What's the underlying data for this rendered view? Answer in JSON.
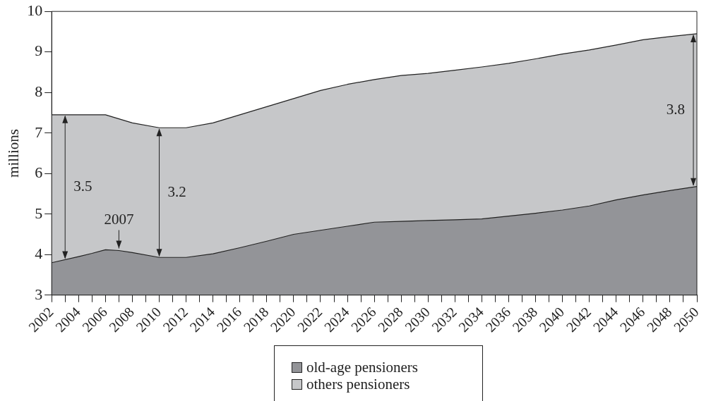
{
  "chart_data": {
    "type": "area",
    "stacked": true,
    "ylabel": "millions",
    "x": [
      2002,
      2004,
      2005,
      2006,
      2007,
      2008,
      2010,
      2012,
      2014,
      2016,
      2018,
      2020,
      2022,
      2024,
      2026,
      2028,
      2030,
      2032,
      2034,
      2036,
      2038,
      2040,
      2042,
      2044,
      2046,
      2048,
      2050
    ],
    "series": [
      {
        "name": "old-age pensioners",
        "color": "#939498",
        "values": [
          3.8,
          3.95,
          4.03,
          4.12,
          4.1,
          4.05,
          3.93,
          3.93,
          4.02,
          4.17,
          4.33,
          4.5,
          4.6,
          4.7,
          4.8,
          4.82,
          4.84,
          4.86,
          4.88,
          4.95,
          5.02,
          5.1,
          5.2,
          5.35,
          5.47,
          5.58,
          5.68
        ]
      },
      {
        "name": "others pensioners",
        "color": "#c6c7c9",
        "values": [
          3.65,
          3.5,
          3.42,
          3.33,
          3.25,
          3.2,
          3.2,
          3.2,
          3.23,
          3.28,
          3.32,
          3.35,
          3.45,
          3.5,
          3.52,
          3.6,
          3.63,
          3.69,
          3.75,
          3.77,
          3.81,
          3.85,
          3.85,
          3.82,
          3.83,
          3.8,
          3.77
        ]
      }
    ],
    "xlim": [
      2002,
      2050
    ],
    "xticks": [
      2002,
      {
        "value": 2003,
        "label": null
      },
      2004,
      {
        "value": 2005,
        "label": null
      },
      2006,
      {
        "value": 2007,
        "label": null
      },
      2008,
      {
        "value": 2009,
        "label": null
      },
      2010,
      {
        "value": 2011,
        "label": null
      },
      2012,
      {
        "value": 2013,
        "label": null
      },
      2014,
      {
        "value": 2015,
        "label": null
      },
      2016,
      {
        "value": 2017,
        "label": null
      },
      2018,
      {
        "value": 2019,
        "label": null
      },
      2020,
      {
        "value": 2021,
        "label": null
      },
      2022,
      {
        "value": 2023,
        "label": null
      },
      2024,
      {
        "value": 2025,
        "label": null
      },
      2026,
      {
        "value": 2027,
        "label": null
      },
      2028,
      {
        "value": 2029,
        "label": null
      },
      2030,
      {
        "value": 2031,
        "label": null
      },
      2032,
      {
        "value": 2033,
        "label": null
      },
      2034,
      {
        "value": 2035,
        "label": null
      },
      2036,
      {
        "value": 2037,
        "label": null
      },
      2038,
      {
        "value": 2039,
        "label": null
      },
      2040,
      {
        "value": 2041,
        "label": null
      },
      2042,
      {
        "value": 2043,
        "label": null
      },
      2044,
      {
        "value": 2045,
        "label": null
      },
      2046,
      {
        "value": 2047,
        "label": null
      },
      2048,
      {
        "value": 2049,
        "label": null
      },
      2050
    ],
    "ylim": [
      3,
      10
    ],
    "yticks": [
      3,
      4,
      5,
      6,
      7,
      8,
      9,
      10
    ],
    "grid": false,
    "legend": "bottom",
    "annotations": [
      "3.5",
      {
        "text": "2007",
        "x": 2007,
        "y": 4.1
      },
      "3.2",
      "3.8"
    ]
  }
}
